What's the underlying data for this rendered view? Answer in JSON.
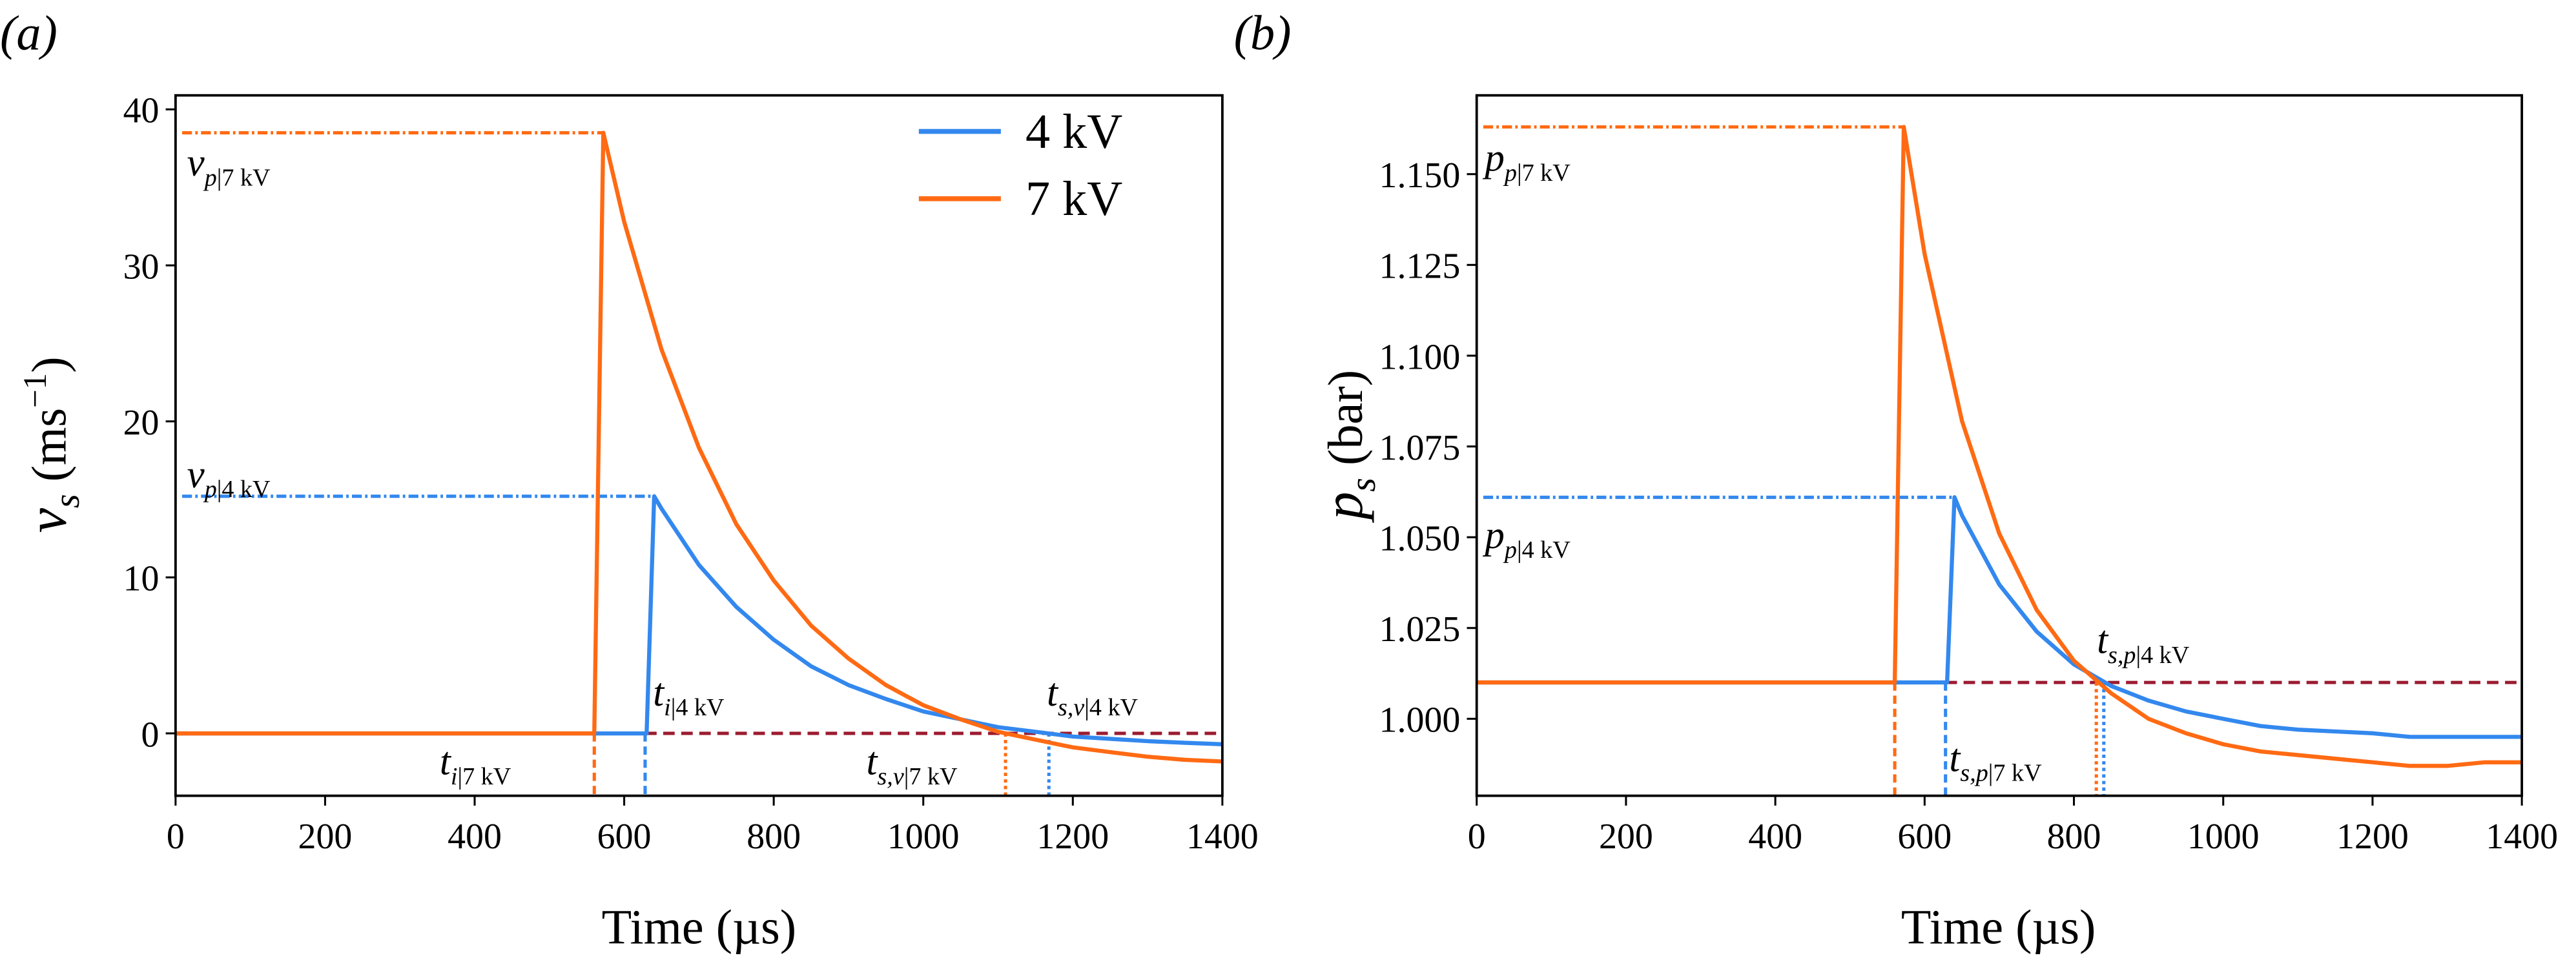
{
  "colors": {
    "4kV": "#3388ee",
    "7kV": "#ff6a13",
    "reference": "#9b1b30"
  },
  "chart_data": [
    {
      "type": "line",
      "panel_label": "(a)",
      "xlabel": "Time (µs)",
      "ylabel": {
        "symbol": "v",
        "sub": "s",
        "unit": " (ms",
        "sup": "−1",
        "close": ")"
      },
      "xlim": [
        0,
        1400
      ],
      "ylim": [
        -4,
        40.9
      ],
      "xticks": [
        "0",
        "200",
        "400",
        "600",
        "800",
        "1000",
        "1200",
        "1400"
      ],
      "yticks": [
        "0",
        "10",
        "20",
        "30",
        "40"
      ],
      "legend": {
        "placement": "top-right",
        "entries": [
          "4 kV",
          "7 kV"
        ]
      },
      "series": [
        {
          "name": "4 kV",
          "x": [
            0,
            630,
            640,
            650,
            700,
            750,
            800,
            850,
            900,
            950,
            1000,
            1050,
            1100,
            1150,
            1200,
            1250,
            1300,
            1350,
            1400
          ],
          "y": [
            0,
            0,
            15.2,
            14.4,
            10.8,
            8.1,
            6.0,
            4.3,
            3.1,
            2.2,
            1.4,
            0.9,
            0.4,
            0.1,
            -0.2,
            -0.35,
            -0.5,
            -0.6,
            -0.7
          ]
        },
        {
          "name": "7 kV",
          "x": [
            0,
            560,
            572,
            600,
            650,
            700,
            750,
            800,
            850,
            900,
            950,
            1000,
            1050,
            1100,
            1150,
            1200,
            1250,
            1300,
            1350,
            1400
          ],
          "y": [
            0,
            0,
            38.5,
            32.8,
            24.6,
            18.3,
            13.4,
            9.8,
            6.9,
            4.8,
            3.1,
            1.8,
            0.9,
            0.1,
            -0.4,
            -0.9,
            -1.2,
            -1.5,
            -1.7,
            -1.8
          ]
        }
      ],
      "reference_level": 0,
      "annotations": {
        "peak_7kV": {
          "value": 38.5,
          "t": 572,
          "main": "v",
          "sub": "p",
          "rest": "|7 kV"
        },
        "peak_4kV": {
          "value": 15.2,
          "t": 640,
          "main": "v",
          "sub": "p",
          "rest": "|4 kV"
        },
        "onset_7kV": {
          "t": 560,
          "main": "t",
          "sub": "i",
          "rest": "|7 kV"
        },
        "onset_4kV": {
          "t": 628,
          "main": "t",
          "sub": "i",
          "rest": "|4 kV"
        },
        "settle_7kV": {
          "t": 1110,
          "main": "t",
          "sub": "s,v",
          "rest": "|7 kV"
        },
        "settle_4kV": {
          "t": 1168,
          "main": "t",
          "sub": "s,v",
          "rest": "|4 kV"
        }
      }
    },
    {
      "type": "line",
      "panel_label": "(b)",
      "xlabel": "Time (µs)",
      "ylabel": {
        "symbol": "p",
        "sub": "s",
        "unit": " (bar)"
      },
      "xlim": [
        0,
        1400
      ],
      "ylim": [
        0.9788,
        1.1717
      ],
      "xticks": [
        "0",
        "200",
        "400",
        "600",
        "800",
        "1000",
        "1200",
        "1400"
      ],
      "yticks": [
        "1.000",
        "1.025",
        "1.050",
        "1.075",
        "1.100",
        "1.125",
        "1.150"
      ],
      "series": [
        {
          "name": "4 kV",
          "x": [
            0,
            630,
            640,
            650,
            700,
            750,
            800,
            850,
            900,
            950,
            1000,
            1050,
            1100,
            1150,
            1200,
            1250,
            1300,
            1350,
            1400
          ],
          "y": [
            1.01,
            1.01,
            1.061,
            1.056,
            1.037,
            1.024,
            1.015,
            1.009,
            1.005,
            1.002,
            1.0,
            0.998,
            0.997,
            0.9965,
            0.996,
            0.995,
            0.995,
            0.995,
            0.995
          ]
        },
        {
          "name": "7 kV",
          "x": [
            0,
            560,
            572,
            600,
            650,
            700,
            750,
            800,
            850,
            900,
            950,
            1000,
            1050,
            1100,
            1150,
            1200,
            1250,
            1300,
            1350,
            1400
          ],
          "y": [
            1.01,
            1.01,
            1.163,
            1.128,
            1.082,
            1.051,
            1.03,
            1.016,
            1.007,
            1.0,
            0.996,
            0.993,
            0.991,
            0.99,
            0.989,
            0.988,
            0.987,
            0.987,
            0.988,
            0.988
          ]
        }
      ],
      "reference_level": 1.01,
      "annotations": {
        "peak_7kV": {
          "value": 1.163,
          "t": 572,
          "main": "p",
          "sub": "p",
          "rest": "|7 kV"
        },
        "peak_4kV": {
          "value": 1.061,
          "t": 640,
          "main": "p",
          "sub": "p",
          "rest": "|4 kV"
        },
        "onset_7kV": {
          "t": 560
        },
        "onset_4kV": {
          "t": 628
        },
        "settle_7kV": {
          "t": 830,
          "main": "t",
          "sub": "s,p",
          "rest": "|7 kV"
        },
        "settle_4kV": {
          "t": 840,
          "main": "t",
          "sub": "s,p",
          "rest": "|4 kV"
        }
      }
    }
  ]
}
